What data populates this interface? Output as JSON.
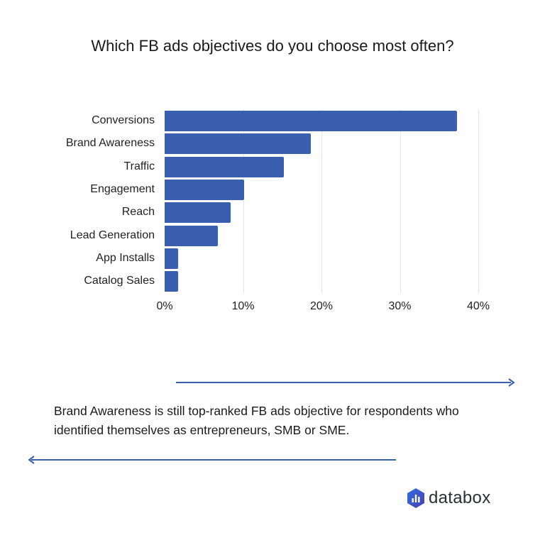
{
  "title": "Which FB ads objectives do you choose most often?",
  "caption": "Brand Awareness is still top-ranked FB ads objective for respondents who identified themselves as entrepreneurs, SMB or SME.",
  "brand": {
    "name": "databox",
    "icon": "databox-hexagon-logo-icon",
    "color": "#3a5fae"
  },
  "chart_data": {
    "type": "bar",
    "orientation": "horizontal",
    "title": "Which FB ads objectives do you choose most often?",
    "categories": [
      "Conversions",
      "Brand Awareness",
      "Traffic",
      "Engagement",
      "Reach",
      "Lead Generation",
      "App Installs",
      "Catalog Sales"
    ],
    "values": [
      37.3,
      18.6,
      15.2,
      10.1,
      8.4,
      6.8,
      1.7,
      1.7
    ],
    "unit": "%",
    "xlabel": "",
    "ylabel": "",
    "xlim": [
      0,
      40
    ],
    "x_ticks": [
      "0%",
      "10%",
      "20%",
      "30%",
      "40%"
    ],
    "grid": true,
    "legend": null,
    "bar_color": "#3a5fae"
  }
}
